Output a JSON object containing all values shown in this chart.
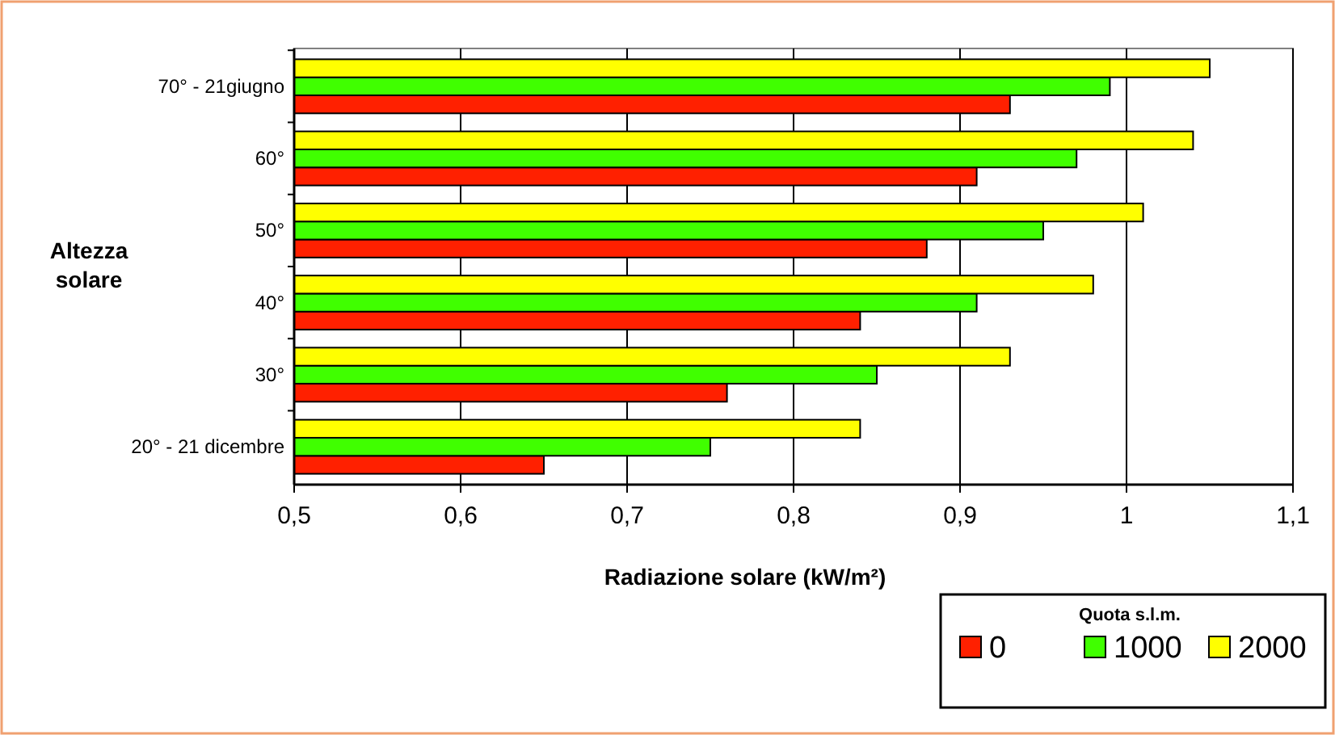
{
  "chart_data": {
    "type": "bar",
    "orientation": "horizontal",
    "xlabel": "Radiazione solare (kW/m²)",
    "ylabel": "Altezza solare",
    "legend_title": "Quota s.l.m.",
    "categories": [
      "70° - 21giugno",
      "60°",
      "50°",
      "40°",
      "30°",
      "20° - 21 dicembre"
    ],
    "series": [
      {
        "name": "0",
        "color": "#ff2000",
        "values": [
          0.93,
          0.91,
          0.88,
          0.84,
          0.76,
          0.65
        ]
      },
      {
        "name": "1000",
        "color": "#40ff00",
        "values": [
          0.99,
          0.97,
          0.95,
          0.91,
          0.85,
          0.75
        ]
      },
      {
        "name": "2000",
        "color": "#ffff00",
        "values": [
          1.05,
          1.04,
          1.01,
          0.98,
          0.93,
          0.84
        ]
      }
    ],
    "xlim": [
      0.5,
      1.1
    ],
    "xticks": [
      {
        "value": 0.5,
        "label": "0,5"
      },
      {
        "value": 0.6,
        "label": "0,6"
      },
      {
        "value": 0.7,
        "label": "0,7"
      },
      {
        "value": 0.8,
        "label": "0,8"
      },
      {
        "value": 0.9,
        "label": "0,9"
      },
      {
        "value": 1,
        "label": "1"
      },
      {
        "value": 1.1,
        "label": "1,1"
      }
    ],
    "grid": "x",
    "legend": "bottom right"
  }
}
